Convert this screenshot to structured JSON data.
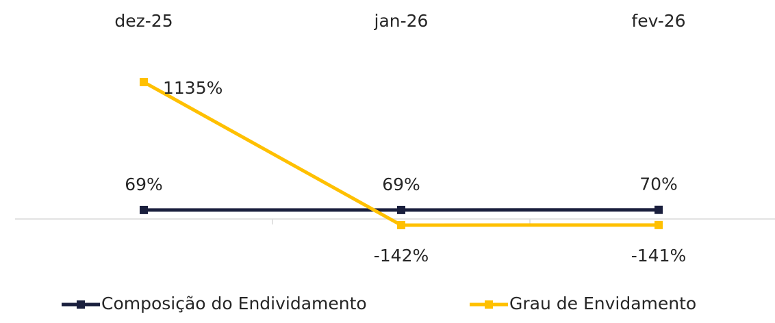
{
  "chart_data": {
    "type": "line",
    "categories": [
      "dez-25",
      "jan-26",
      "fev-26"
    ],
    "series": [
      {
        "name": "Composição do Endividamento",
        "color": "#1a1f3d",
        "values": [
          69,
          69,
          70
        ],
        "value_labels": [
          "69%",
          "69%",
          "70%"
        ]
      },
      {
        "name": "Grau de Envidamento",
        "color": "#ffc000",
        "values": [
          1135,
          -142,
          -141
        ],
        "value_labels": [
          "1135%",
          "-142%",
          "-141%"
        ]
      }
    ]
  }
}
